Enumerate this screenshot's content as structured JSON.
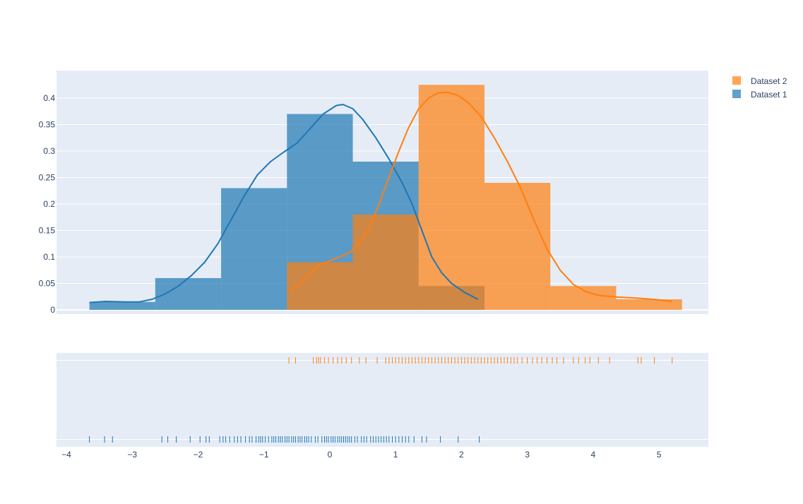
{
  "chart_data": {
    "type": "bar",
    "title": "",
    "xlabel": "",
    "ylabel": "",
    "xlim": [
      -4.15,
      5.75
    ],
    "ylim": [
      -0.008,
      0.452
    ],
    "x_ticks": [
      -4,
      -3,
      -2,
      -1,
      0,
      1,
      2,
      3,
      4,
      5
    ],
    "y_ticks": [
      0,
      0.05,
      0.1,
      0.15,
      0.2,
      0.25,
      0.3,
      0.35,
      0.4
    ],
    "grid": true,
    "legend_position": "top-right",
    "colors": {
      "plot_bg": "#e5ecf6",
      "grid": "#ffffff",
      "dataset1": "#1f77b4",
      "dataset2": "#ff7f0e",
      "axis_text": "#2a3f5f"
    },
    "legend": [
      {
        "label": "Dataset 2",
        "color": "#ff7f0e"
      },
      {
        "label": "Dataset 1",
        "color": "#1f77b4"
      }
    ],
    "series": [
      {
        "name": "Dataset 1",
        "color": "#1f77b4",
        "histogram": {
          "bin_edges": [
            -3.65,
            -2.65,
            -1.65,
            -0.65,
            0.35,
            1.35,
            2.35
          ],
          "density": [
            0.015,
            0.06,
            0.23,
            0.37,
            0.28,
            0.045
          ]
        },
        "kde": [
          [
            -3.65,
            0.014
          ],
          [
            -3.4,
            0.016
          ],
          [
            -3.1,
            0.015
          ],
          [
            -2.9,
            0.015
          ],
          [
            -2.7,
            0.02
          ],
          [
            -2.5,
            0.03
          ],
          [
            -2.3,
            0.045
          ],
          [
            -2.1,
            0.065
          ],
          [
            -1.9,
            0.09
          ],
          [
            -1.7,
            0.125
          ],
          [
            -1.5,
            0.17
          ],
          [
            -1.3,
            0.215
          ],
          [
            -1.1,
            0.255
          ],
          [
            -0.9,
            0.28
          ],
          [
            -0.7,
            0.298
          ],
          [
            -0.5,
            0.315
          ],
          [
            -0.3,
            0.342
          ],
          [
            -0.1,
            0.37
          ],
          [
            0.1,
            0.386
          ],
          [
            0.2,
            0.388
          ],
          [
            0.35,
            0.38
          ],
          [
            0.5,
            0.36
          ],
          [
            0.7,
            0.325
          ],
          [
            0.9,
            0.285
          ],
          [
            1.1,
            0.24
          ],
          [
            1.25,
            0.2
          ],
          [
            1.4,
            0.15
          ],
          [
            1.55,
            0.1
          ],
          [
            1.7,
            0.07
          ],
          [
            1.85,
            0.05
          ],
          [
            2.05,
            0.033
          ],
          [
            2.25,
            0.02
          ]
        ],
        "rug": [
          -3.65,
          -3.42,
          -3.3,
          -2.55,
          -2.46,
          -2.33,
          -2.12,
          -1.97,
          -1.88,
          -1.83,
          -1.67,
          -1.62,
          -1.58,
          -1.52,
          -1.45,
          -1.4,
          -1.35,
          -1.28,
          -1.22,
          -1.18,
          -1.12,
          -1.08,
          -1.05,
          -1.02,
          -0.98,
          -0.93,
          -0.88,
          -0.85,
          -0.82,
          -0.78,
          -0.75,
          -0.72,
          -0.68,
          -0.65,
          -0.62,
          -0.58,
          -0.55,
          -0.52,
          -0.48,
          -0.45,
          -0.42,
          -0.38,
          -0.35,
          -0.32,
          -0.28,
          -0.22,
          -0.18,
          -0.12,
          -0.08,
          -0.05,
          -0.02,
          0.02,
          0.05,
          0.08,
          0.12,
          0.15,
          0.18,
          0.21,
          0.24,
          0.27,
          0.3,
          0.33,
          0.38,
          0.42,
          0.48,
          0.52,
          0.56,
          0.62,
          0.66,
          0.7,
          0.74,
          0.78,
          0.82,
          0.86,
          0.9,
          0.95,
          1.0,
          1.05,
          1.1,
          1.15,
          1.2,
          1.28,
          1.4,
          1.47,
          1.68,
          1.95,
          2.27
        ]
      },
      {
        "name": "Dataset 2",
        "color": "#ff7f0e",
        "histogram": {
          "bin_edges": [
            -0.65,
            0.35,
            1.35,
            2.35,
            3.35,
            4.35,
            5.35
          ],
          "density": [
            0.09,
            0.18,
            0.425,
            0.24,
            0.045,
            0.02
          ]
        },
        "kde": [
          [
            -0.62,
            0.034
          ],
          [
            -0.45,
            0.05
          ],
          [
            -0.3,
            0.07
          ],
          [
            -0.15,
            0.085
          ],
          [
            0.0,
            0.093
          ],
          [
            0.15,
            0.1
          ],
          [
            0.3,
            0.108
          ],
          [
            0.45,
            0.125
          ],
          [
            0.6,
            0.155
          ],
          [
            0.75,
            0.2
          ],
          [
            0.9,
            0.25
          ],
          [
            1.05,
            0.3
          ],
          [
            1.2,
            0.345
          ],
          [
            1.35,
            0.38
          ],
          [
            1.5,
            0.4
          ],
          [
            1.65,
            0.41
          ],
          [
            1.8,
            0.411
          ],
          [
            1.95,
            0.405
          ],
          [
            2.1,
            0.392
          ],
          [
            2.3,
            0.365
          ],
          [
            2.5,
            0.325
          ],
          [
            2.7,
            0.28
          ],
          [
            2.9,
            0.23
          ],
          [
            3.1,
            0.17
          ],
          [
            3.3,
            0.115
          ],
          [
            3.5,
            0.075
          ],
          [
            3.7,
            0.048
          ],
          [
            3.9,
            0.034
          ],
          [
            4.1,
            0.027
          ],
          [
            4.4,
            0.024
          ],
          [
            4.7,
            0.022
          ],
          [
            5.0,
            0.019
          ],
          [
            5.2,
            0.016
          ]
        ],
        "rug": [
          -0.62,
          -0.52,
          -0.25,
          -0.2,
          -0.17,
          -0.14,
          -0.08,
          -0.02,
          0.05,
          0.12,
          0.18,
          0.25,
          0.33,
          0.45,
          0.55,
          0.72,
          0.85,
          0.9,
          0.95,
          1.0,
          1.05,
          1.1,
          1.15,
          1.2,
          1.25,
          1.3,
          1.35,
          1.4,
          1.45,
          1.5,
          1.55,
          1.6,
          1.65,
          1.7,
          1.75,
          1.8,
          1.85,
          1.9,
          1.95,
          2.0,
          2.05,
          2.1,
          2.15,
          2.2,
          2.25,
          2.3,
          2.35,
          2.4,
          2.45,
          2.5,
          2.55,
          2.6,
          2.65,
          2.7,
          2.75,
          2.8,
          2.85,
          2.92,
          3.0,
          3.08,
          3.15,
          3.22,
          3.3,
          3.38,
          3.45,
          3.55,
          3.7,
          3.78,
          3.88,
          3.95,
          4.08,
          4.25,
          4.68,
          4.73,
          4.93,
          5.2
        ]
      }
    ]
  }
}
